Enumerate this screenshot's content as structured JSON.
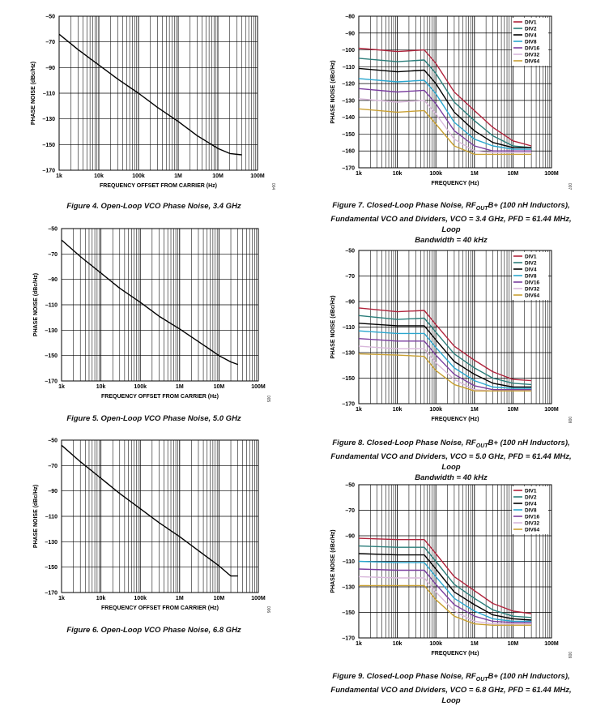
{
  "colors": {
    "DIV1": "#b0243c",
    "DIV2": "#2a7d7a",
    "DIV4": "#000000",
    "DIV8": "#2aa7cf",
    "DIV16": "#7b3fa0",
    "DIV32": "#d9b8dc",
    "DIV64": "#c9a033",
    "openloop": "#000000"
  },
  "chart_data": [
    {
      "id": "fig4",
      "type": "line",
      "xscale": "log",
      "xlabel": "FREQUENCY OFFSET FROM CARRIER (Hz)",
      "ylabel": "PHASE NOISE (dBc/Hz)",
      "xlim": [
        1000,
        100000000
      ],
      "ylim": [
        -170,
        -50
      ],
      "xticks": [
        "1k",
        "10k",
        "100k",
        "1M",
        "10M",
        "100M"
      ],
      "yticks": [
        -50,
        -70,
        -90,
        -110,
        -130,
        -150,
        -170
      ],
      "side_code": "004",
      "series": [
        {
          "key": "openloop",
          "x": [
            1000,
            3000,
            10000,
            30000,
            100000,
            300000,
            1000000,
            3000000,
            10000000,
            20000000,
            40000000
          ],
          "y": [
            -64,
            -76,
            -88,
            -99,
            -110,
            -121,
            -132,
            -143,
            -153,
            -157,
            -158
          ]
        }
      ]
    },
    {
      "id": "fig5",
      "type": "line",
      "xscale": "log",
      "xlabel": "FREQUENCY OFFSET FROM CARRIER (Hz)",
      "ylabel": "PHASE NOISE (dBc/Hz)",
      "xlim": [
        1000,
        100000000
      ],
      "ylim": [
        -170,
        -50
      ],
      "xticks": [
        "1k",
        "10k",
        "100k",
        "1M",
        "10M",
        "100M"
      ],
      "yticks": [
        -50,
        -70,
        -90,
        -110,
        -130,
        -150,
        -170
      ],
      "side_code": "005",
      "series": [
        {
          "key": "openloop",
          "x": [
            1000,
            3000,
            10000,
            30000,
            100000,
            300000,
            1000000,
            3000000,
            10000000,
            20000000,
            30000000
          ],
          "y": [
            -59,
            -72,
            -85,
            -97,
            -108,
            -119,
            -129,
            -139,
            -150,
            -155,
            -157
          ]
        }
      ]
    },
    {
      "id": "fig6",
      "type": "line",
      "xscale": "log",
      "xlabel": "FREQUENCY OFFSET FROM CARRIER (Hz)",
      "ylabel": "PHASE NOISE (dBc/Hz)",
      "xlim": [
        1000,
        100000000
      ],
      "ylim": [
        -170,
        -50
      ],
      "xticks": [
        "1k",
        "10k",
        "100k",
        "1M",
        "10M",
        "100M"
      ],
      "yticks": [
        -50,
        -70,
        -90,
        -110,
        -130,
        -150,
        -170
      ],
      "side_code": "006",
      "series": [
        {
          "key": "openloop",
          "x": [
            1000,
            3000,
            10000,
            30000,
            100000,
            300000,
            1000000,
            3000000,
            10000000,
            20000000,
            30000000
          ],
          "y": [
            -54,
            -67,
            -80,
            -92,
            -104,
            -115,
            -126,
            -137,
            -149,
            -157,
            -157
          ]
        }
      ]
    },
    {
      "id": "fig7",
      "type": "line",
      "xscale": "log",
      "xlabel": "FREQUENCY (Hz)",
      "ylabel": "PHASE NOISE (dBc/Hz)",
      "xlim": [
        1000,
        100000000
      ],
      "ylim": [
        -170,
        -80
      ],
      "xticks": [
        "1k",
        "10k",
        "100k",
        "1M",
        "10M",
        "100M"
      ],
      "yticks": [
        -80,
        -90,
        -100,
        -110,
        -120,
        -130,
        -140,
        -150,
        -160,
        -170
      ],
      "legend_position": "top-right",
      "side_code": "007",
      "series": [
        {
          "name": "DIV1",
          "key": "DIV1",
          "x": [
            1000,
            10000,
            50000,
            100000,
            300000,
            1000000,
            3000000,
            10000000,
            30000000
          ],
          "y": [
            -99,
            -101,
            -100,
            -108,
            -125,
            -136,
            -146,
            -154,
            -157
          ]
        },
        {
          "name": "DIV2",
          "key": "DIV2",
          "x": [
            1000,
            10000,
            50000,
            100000,
            300000,
            1000000,
            3000000,
            10000000,
            30000000
          ],
          "y": [
            -105,
            -107,
            -106,
            -114,
            -131,
            -142,
            -151,
            -157,
            -158
          ]
        },
        {
          "name": "DIV4",
          "key": "DIV4",
          "x": [
            1000,
            10000,
            50000,
            100000,
            300000,
            1000000,
            3000000,
            10000000,
            30000000
          ],
          "y": [
            -111,
            -113,
            -112,
            -120,
            -137,
            -148,
            -155,
            -158,
            -158
          ]
        },
        {
          "name": "DIV8",
          "key": "DIV8",
          "x": [
            1000,
            10000,
            50000,
            100000,
            300000,
            1000000,
            3000000,
            10000000,
            30000000
          ],
          "y": [
            -117,
            -119,
            -118,
            -126,
            -143,
            -153,
            -157,
            -159,
            -159
          ]
        },
        {
          "name": "DIV16",
          "key": "DIV16",
          "x": [
            1000,
            10000,
            50000,
            100000,
            300000,
            1000000,
            3000000,
            10000000,
            30000000
          ],
          "y": [
            -123,
            -125,
            -124,
            -132,
            -148,
            -157,
            -160,
            -160,
            -160
          ]
        },
        {
          "name": "DIV32",
          "key": "DIV32",
          "x": [
            1000,
            10000,
            50000,
            100000,
            300000,
            1000000,
            3000000,
            10000000,
            30000000
          ],
          "y": [
            -129,
            -131,
            -130,
            -138,
            -153,
            -160,
            -161,
            -161,
            -161
          ]
        },
        {
          "name": "DIV64",
          "key": "DIV64",
          "x": [
            1000,
            10000,
            50000,
            100000,
            300000,
            1000000,
            3000000,
            10000000,
            30000000
          ],
          "y": [
            -135,
            -137,
            -136,
            -144,
            -157,
            -162,
            -162,
            -162,
            -162
          ]
        }
      ]
    },
    {
      "id": "fig8",
      "type": "line",
      "xscale": "log",
      "xlabel": "FREQUENCY (Hz)",
      "ylabel": "PHASE NOISE (dBc/Hz)",
      "xlim": [
        1000,
        100000000
      ],
      "ylim": [
        -170,
        -50
      ],
      "xticks": [
        "1k",
        "10k",
        "100k",
        "1M",
        "10M",
        "100M"
      ],
      "yticks": [
        -50,
        -70,
        -90,
        -110,
        -130,
        -150,
        -170
      ],
      "legend_position": "top-right",
      "side_code": "008",
      "series": [
        {
          "name": "DIV1",
          "key": "DIV1",
          "x": [
            1000,
            10000,
            50000,
            100000,
            300000,
            1000000,
            3000000,
            10000000,
            30000000
          ],
          "y": [
            -95,
            -98,
            -97,
            -108,
            -125,
            -136,
            -145,
            -151,
            -152
          ]
        },
        {
          "name": "DIV2",
          "key": "DIV2",
          "x": [
            1000,
            10000,
            50000,
            100000,
            300000,
            1000000,
            3000000,
            10000000,
            30000000
          ],
          "y": [
            -101,
            -104,
            -103,
            -114,
            -131,
            -142,
            -150,
            -154,
            -155
          ]
        },
        {
          "name": "DIV4",
          "key": "DIV4",
          "x": [
            1000,
            10000,
            50000,
            100000,
            300000,
            1000000,
            3000000,
            10000000,
            30000000
          ],
          "y": [
            -107,
            -109,
            -109,
            -120,
            -137,
            -147,
            -154,
            -157,
            -157
          ]
        },
        {
          "name": "DIV8",
          "key": "DIV8",
          "x": [
            1000,
            10000,
            50000,
            100000,
            300000,
            1000000,
            3000000,
            10000000,
            30000000
          ],
          "y": [
            -113,
            -115,
            -115,
            -126,
            -142,
            -152,
            -157,
            -158,
            -158
          ]
        },
        {
          "name": "DIV16",
          "key": "DIV16",
          "x": [
            1000,
            10000,
            50000,
            100000,
            300000,
            1000000,
            3000000,
            10000000,
            30000000
          ],
          "y": [
            -119,
            -121,
            -121,
            -132,
            -147,
            -156,
            -159,
            -159,
            -159
          ]
        },
        {
          "name": "DIV32",
          "key": "DIV32",
          "x": [
            1000,
            10000,
            50000,
            100000,
            300000,
            1000000,
            3000000,
            10000000,
            30000000
          ],
          "y": [
            -125,
            -127,
            -127,
            -138,
            -151,
            -159,
            -160,
            -160,
            -160
          ]
        },
        {
          "name": "DIV64",
          "key": "DIV64",
          "x": [
            1000,
            10000,
            50000,
            100000,
            300000,
            1000000,
            3000000,
            10000000,
            30000000
          ],
          "y": [
            -131,
            -132,
            -133,
            -144,
            -155,
            -160,
            -160,
            -160,
            -160
          ]
        }
      ]
    },
    {
      "id": "fig9",
      "type": "line",
      "xscale": "log",
      "xlabel": "FREQUENCY (Hz)",
      "ylabel": "PHASE NOISE (dBc/Hz)",
      "xlim": [
        1000,
        100000000
      ],
      "ylim": [
        -170,
        -50
      ],
      "xticks": [
        "1k",
        "10k",
        "100k",
        "1M",
        "10M",
        "100M"
      ],
      "yticks": [
        -50,
        -70,
        -90,
        -110,
        -130,
        -150,
        -170
      ],
      "legend_position": "top-right",
      "side_code": "009",
      "series": [
        {
          "name": "DIV1",
          "key": "DIV1",
          "x": [
            1000,
            10000,
            50000,
            100000,
            300000,
            1000000,
            3000000,
            10000000,
            30000000
          ],
          "y": [
            -92,
            -93,
            -93,
            -104,
            -122,
            -133,
            -143,
            -149,
            -151
          ]
        },
        {
          "name": "DIV2",
          "key": "DIV2",
          "x": [
            1000,
            10000,
            50000,
            100000,
            300000,
            1000000,
            3000000,
            10000000,
            30000000
          ],
          "y": [
            -98,
            -99,
            -99,
            -110,
            -128,
            -139,
            -148,
            -153,
            -154
          ]
        },
        {
          "name": "DIV4",
          "key": "DIV4",
          "x": [
            1000,
            10000,
            50000,
            100000,
            300000,
            1000000,
            3000000,
            10000000,
            30000000
          ],
          "y": [
            -104,
            -105,
            -105,
            -116,
            -134,
            -144,
            -152,
            -155,
            -156
          ]
        },
        {
          "name": "DIV8",
          "key": "DIV8",
          "x": [
            1000,
            10000,
            50000,
            100000,
            300000,
            1000000,
            3000000,
            10000000,
            30000000
          ],
          "y": [
            -110,
            -111,
            -111,
            -122,
            -139,
            -149,
            -155,
            -157,
            -157
          ]
        },
        {
          "name": "DIV16",
          "key": "DIV16",
          "x": [
            1000,
            10000,
            50000,
            100000,
            300000,
            1000000,
            3000000,
            10000000,
            30000000
          ],
          "y": [
            -116,
            -117,
            -117,
            -128,
            -144,
            -153,
            -157,
            -158,
            -158
          ]
        },
        {
          "name": "DIV32",
          "key": "DIV32",
          "x": [
            1000,
            10000,
            50000,
            100000,
            300000,
            1000000,
            3000000,
            10000000,
            30000000
          ],
          "y": [
            -122,
            -123,
            -123,
            -134,
            -149,
            -157,
            -159,
            -159,
            -159
          ]
        },
        {
          "name": "DIV64",
          "key": "DIV64",
          "x": [
            1000,
            10000,
            50000,
            100000,
            300000,
            1000000,
            3000000,
            10000000,
            30000000
          ],
          "y": [
            -129,
            -129,
            -129,
            -140,
            -153,
            -159,
            -160,
            -160,
            -160
          ]
        }
      ]
    }
  ],
  "captions": {
    "fig4": "Figure 4. Open-Loop VCO Phase Noise, 3.4 GHz",
    "fig5": "Figure 5. Open-Loop VCO Phase Noise, 5.0 GHz",
    "fig6": "Figure 6. Open-Loop VCO Phase Noise, 6.8 GHz",
    "fig7_pre": "Figure 7. Closed-Loop Phase Noise, RF",
    "fig7_sub": "OUT",
    "fig7_post": "B+ (100 nH Inductors),",
    "fig7_line2": "Fundamental VCO and Dividers, VCO = 3.4 GHz, PFD = 61.44 MHz, Loop",
    "fig7_line3": "Bandwidth = 40 kHz",
    "fig8_pre": "Figure 8. Closed-Loop Phase Noise, RF",
    "fig8_sub": "OUT",
    "fig8_post": "B+ (100 nH Inductors),",
    "fig8_line2": "Fundamental VCO and Dividers, VCO = 5.0 GHz, PFD = 61.44 MHz, Loop",
    "fig8_line3": "Bandwidth = 40 kHz",
    "fig9_pre": "Figure 9. Closed-Loop Phase Noise, RF",
    "fig9_sub": "OUT",
    "fig9_post": "B+ (100 nH Inductors),",
    "fig9_line2": "Fundamental VCO and Dividers, VCO = 6.8 GHz, PFD = 61.44 MHz, Loop"
  }
}
